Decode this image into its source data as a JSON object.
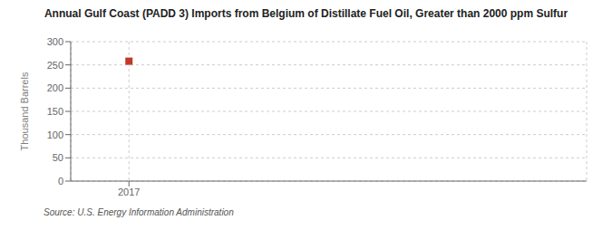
{
  "chart_data": {
    "type": "scatter",
    "title": "Annual Gulf Coast (PADD 3) Imports from Belgium of Distillate Fuel Oil, Greater than 2000 ppm Sulfur",
    "y_label": "Thousand Barrels",
    "annotations": [
      "Source: U.S. Energy Information Administration"
    ],
    "x": [
      2017
    ],
    "values": [
      258
    ],
    "color": "#c0392b",
    "marker": "square",
    "xlim": [
      2016.3,
      2022.5
    ],
    "xticks": [
      2017
    ],
    "ylim": [
      0,
      300
    ],
    "yticks": [
      0,
      50,
      100,
      150,
      200,
      250,
      300
    ],
    "grid": true
  }
}
